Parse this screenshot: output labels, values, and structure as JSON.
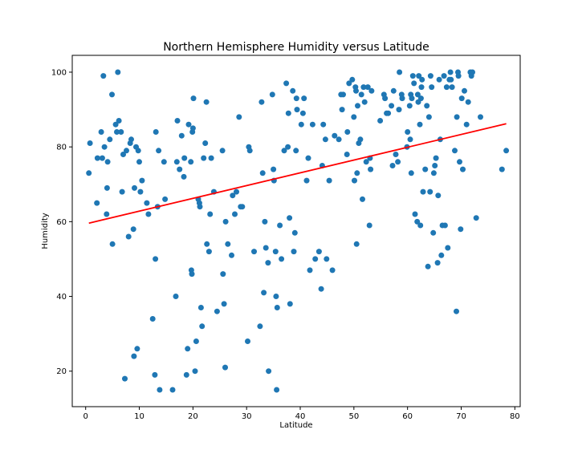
{
  "chart_data": {
    "type": "scatter",
    "title": "Northern Hemisphere Humidity versus Latitude",
    "xlabel": "Latitude",
    "ylabel": "Humidity",
    "xlim": [
      -2.5,
      81
    ],
    "ylim": [
      10.5,
      104.5
    ],
    "xticks": [
      0,
      10,
      20,
      30,
      40,
      50,
      60,
      70,
      80
    ],
    "yticks": [
      20,
      40,
      60,
      80,
      100
    ],
    "grid": false,
    "colors": {
      "points": "#1f77b4",
      "regression": "#ff0000"
    },
    "regression": {
      "x": [
        0.6,
        78.4
      ],
      "y": [
        59.6,
        86.2
      ]
    },
    "points": [
      [
        0.6,
        73
      ],
      [
        0.8,
        81
      ],
      [
        2.1,
        65
      ],
      [
        2.2,
        77
      ],
      [
        2.9,
        84
      ],
      [
        3.1,
        77
      ],
      [
        3.3,
        99
      ],
      [
        3.5,
        80
      ],
      [
        3.9,
        62
      ],
      [
        4.0,
        69
      ],
      [
        4.1,
        76
      ],
      [
        4.5,
        82
      ],
      [
        4.9,
        94
      ],
      [
        5.0,
        54
      ],
      [
        5.6,
        86
      ],
      [
        5.8,
        84
      ],
      [
        6.0,
        100
      ],
      [
        6.2,
        87
      ],
      [
        6.6,
        84
      ],
      [
        6.8,
        68
      ],
      [
        7.0,
        78
      ],
      [
        7.3,
        18
      ],
      [
        7.6,
        79
      ],
      [
        8.0,
        56
      ],
      [
        8.3,
        81
      ],
      [
        8.5,
        82
      ],
      [
        8.9,
        58
      ],
      [
        9.0,
        24
      ],
      [
        9.1,
        69
      ],
      [
        9.4,
        80
      ],
      [
        9.6,
        26
      ],
      [
        9.8,
        79
      ],
      [
        10.0,
        76
      ],
      [
        10.2,
        68
      ],
      [
        10.5,
        71
      ],
      [
        11.4,
        65
      ],
      [
        11.7,
        62
      ],
      [
        12.5,
        34
      ],
      [
        12.9,
        19
      ],
      [
        13.0,
        50
      ],
      [
        13.1,
        84
      ],
      [
        13.4,
        64
      ],
      [
        13.6,
        79
      ],
      [
        13.8,
        15
      ],
      [
        14.6,
        76
      ],
      [
        14.8,
        66
      ],
      [
        16.2,
        15
      ],
      [
        16.8,
        40
      ],
      [
        17.0,
        76
      ],
      [
        17.1,
        87
      ],
      [
        17.5,
        74
      ],
      [
        17.9,
        83
      ],
      [
        18.3,
        72
      ],
      [
        18.4,
        77
      ],
      [
        18.8,
        19
      ],
      [
        19.0,
        26
      ],
      [
        19.2,
        86
      ],
      [
        19.6,
        76
      ],
      [
        19.7,
        47
      ],
      [
        19.8,
        46
      ],
      [
        19.9,
        84
      ],
      [
        20.0,
        85
      ],
      [
        20.1,
        93
      ],
      [
        20.4,
        20
      ],
      [
        20.6,
        28
      ],
      [
        21.0,
        66
      ],
      [
        21.2,
        65
      ],
      [
        21.3,
        64
      ],
      [
        21.5,
        37
      ],
      [
        21.7,
        32
      ],
      [
        22.0,
        77
      ],
      [
        22.3,
        81
      ],
      [
        22.5,
        92
      ],
      [
        22.6,
        54
      ],
      [
        23.0,
        52
      ],
      [
        23.2,
        62
      ],
      [
        23.4,
        77
      ],
      [
        23.9,
        68
      ],
      [
        24.5,
        36
      ],
      [
        25.5,
        79
      ],
      [
        25.6,
        46
      ],
      [
        25.8,
        38
      ],
      [
        26.0,
        21
      ],
      [
        26.1,
        60
      ],
      [
        26.5,
        54
      ],
      [
        27.2,
        51
      ],
      [
        27.4,
        67
      ],
      [
        27.8,
        62
      ],
      [
        28.1,
        68
      ],
      [
        28.6,
        88
      ],
      [
        28.9,
        64
      ],
      [
        29.2,
        64
      ],
      [
        30.2,
        28
      ],
      [
        30.4,
        80
      ],
      [
        30.6,
        79
      ],
      [
        31.4,
        52
      ],
      [
        32.5,
        32
      ],
      [
        32.8,
        92
      ],
      [
        33.0,
        73
      ],
      [
        33.2,
        41
      ],
      [
        33.4,
        60
      ],
      [
        33.6,
        53
      ],
      [
        34.0,
        49
      ],
      [
        34.1,
        20
      ],
      [
        34.8,
        94
      ],
      [
        35.0,
        74
      ],
      [
        35.1,
        71
      ],
      [
        35.4,
        52
      ],
      [
        35.5,
        40
      ],
      [
        35.6,
        15
      ],
      [
        35.7,
        37
      ],
      [
        36.2,
        59
      ],
      [
        36.5,
        50
      ],
      [
        37.0,
        79
      ],
      [
        37.4,
        97
      ],
      [
        37.7,
        80
      ],
      [
        37.8,
        89
      ],
      [
        38.0,
        61
      ],
      [
        38.1,
        38
      ],
      [
        38.6,
        95
      ],
      [
        38.8,
        52
      ],
      [
        39.0,
        57
      ],
      [
        39.2,
        79
      ],
      [
        39.3,
        93
      ],
      [
        39.4,
        90
      ],
      [
        40.2,
        86
      ],
      [
        40.5,
        89
      ],
      [
        40.7,
        93
      ],
      [
        41.2,
        71
      ],
      [
        41.5,
        77
      ],
      [
        41.8,
        47
      ],
      [
        42.3,
        86
      ],
      [
        42.8,
        50
      ],
      [
        43.5,
        52
      ],
      [
        43.9,
        42
      ],
      [
        44.1,
        75
      ],
      [
        44.3,
        86
      ],
      [
        44.7,
        82
      ],
      [
        44.9,
        50
      ],
      [
        45.4,
        71
      ],
      [
        46.0,
        47
      ],
      [
        46.4,
        83
      ],
      [
        47.2,
        82
      ],
      [
        47.6,
        94
      ],
      [
        47.8,
        90
      ],
      [
        48.0,
        94
      ],
      [
        48.7,
        78
      ],
      [
        48.8,
        84
      ],
      [
        49.1,
        97
      ],
      [
        49.7,
        98
      ],
      [
        50.0,
        88
      ],
      [
        50.1,
        71
      ],
      [
        50.3,
        96
      ],
      [
        50.4,
        95
      ],
      [
        50.5,
        54
      ],
      [
        50.6,
        73
      ],
      [
        50.7,
        91
      ],
      [
        50.9,
        81
      ],
      [
        51.2,
        82
      ],
      [
        51.4,
        94
      ],
      [
        51.6,
        66
      ],
      [
        51.8,
        96
      ],
      [
        52.0,
        92
      ],
      [
        52.3,
        76
      ],
      [
        52.6,
        96
      ],
      [
        52.9,
        59
      ],
      [
        53.0,
        77
      ],
      [
        53.1,
        74
      ],
      [
        53.3,
        95
      ],
      [
        54.9,
        87
      ],
      [
        55.6,
        94
      ],
      [
        55.8,
        93
      ],
      [
        56.1,
        89
      ],
      [
        56.4,
        89
      ],
      [
        57.0,
        91
      ],
      [
        57.2,
        75
      ],
      [
        57.4,
        95
      ],
      [
        57.8,
        78
      ],
      [
        58.2,
        76
      ],
      [
        58.4,
        90
      ],
      [
        58.5,
        100
      ],
      [
        58.9,
        94
      ],
      [
        59.0,
        93
      ],
      [
        59.9,
        80
      ],
      [
        60.0,
        84
      ],
      [
        60.4,
        91
      ],
      [
        60.5,
        82
      ],
      [
        60.6,
        94
      ],
      [
        60.7,
        73
      ],
      [
        60.8,
        93
      ],
      [
        61.0,
        99
      ],
      [
        61.2,
        97
      ],
      [
        61.4,
        62
      ],
      [
        61.8,
        60
      ],
      [
        61.9,
        94
      ],
      [
        62.0,
        92
      ],
      [
        62.1,
        99
      ],
      [
        62.3,
        86
      ],
      [
        62.4,
        59
      ],
      [
        62.5,
        93
      ],
      [
        62.6,
        96
      ],
      [
        62.7,
        98
      ],
      [
        62.9,
        68
      ],
      [
        63.3,
        74
      ],
      [
        63.6,
        91
      ],
      [
        63.8,
        48
      ],
      [
        64.0,
        88
      ],
      [
        64.2,
        68
      ],
      [
        64.3,
        99
      ],
      [
        64.5,
        96
      ],
      [
        64.8,
        57
      ],
      [
        64.9,
        73
      ],
      [
        65.1,
        75
      ],
      [
        65.3,
        77
      ],
      [
        65.6,
        49
      ],
      [
        65.7,
        67
      ],
      [
        65.9,
        98
      ],
      [
        66.1,
        82
      ],
      [
        66.3,
        51
      ],
      [
        66.5,
        59
      ],
      [
        66.8,
        99
      ],
      [
        67.0,
        59
      ],
      [
        67.3,
        96
      ],
      [
        67.5,
        53
      ],
      [
        67.8,
        98
      ],
      [
        68.0,
        100
      ],
      [
        68.1,
        98
      ],
      [
        68.3,
        96
      ],
      [
        68.8,
        79
      ],
      [
        69.1,
        36
      ],
      [
        69.2,
        88
      ],
      [
        69.4,
        100
      ],
      [
        69.5,
        99
      ],
      [
        69.7,
        76
      ],
      [
        69.9,
        58
      ],
      [
        70.1,
        93
      ],
      [
        70.3,
        74
      ],
      [
        70.6,
        95
      ],
      [
        71.0,
        86
      ],
      [
        71.3,
        92
      ],
      [
        71.7,
        100
      ],
      [
        71.9,
        99
      ],
      [
        72.1,
        100
      ],
      [
        72.8,
        61
      ],
      [
        73.6,
        88
      ],
      [
        77.6,
        74
      ],
      [
        78.4,
        79
      ]
    ]
  }
}
